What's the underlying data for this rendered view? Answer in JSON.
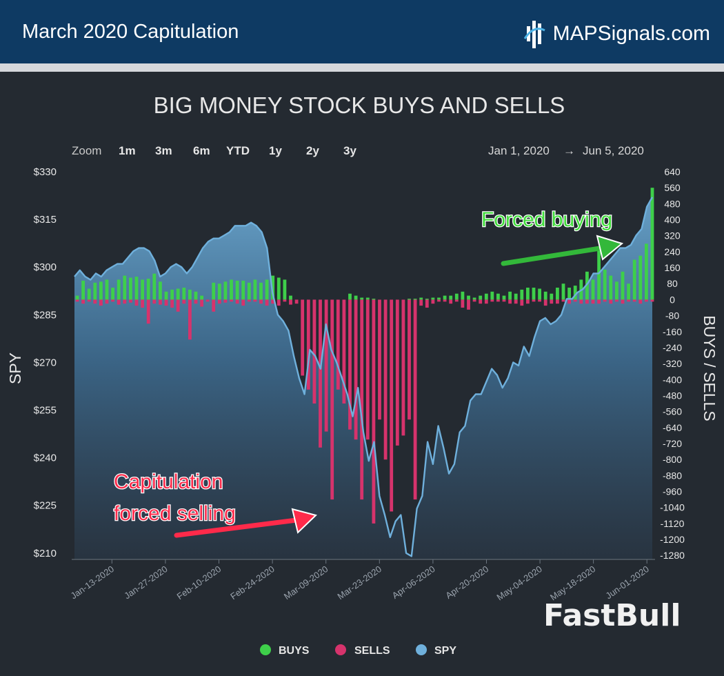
{
  "header": {
    "title": "March 2020 Capitulation",
    "brand": "MAPSignals.com"
  },
  "zoom": {
    "label": "Zoom",
    "options": [
      "1m",
      "3m",
      "6m",
      "YTD",
      "1y",
      "2y",
      "3y"
    ]
  },
  "date_range": {
    "from": "Jan 1, 2020",
    "arrow": "→",
    "to": "Jun 5, 2020"
  },
  "annotations": {
    "forced_buying": "Forced buying",
    "capitulation_line1": "Capitulation",
    "capitulation_line2": "forced selling"
  },
  "watermark": "FastBull",
  "colors": {
    "buys": "#3ecf4a",
    "sells": "#d6336c",
    "spy": "#6fb0dc",
    "header_bg": "#0e3a63",
    "panel_bg": "#242a31"
  },
  "chart_data": {
    "type": "bar",
    "title": "BIG MONEY STOCK BUYS AND SELLS",
    "ylabel_left": "SPY",
    "ylabel_right": "BUYS / SELLS",
    "ylim_left": [
      208,
      330
    ],
    "ylim_right": [
      -1300,
      640
    ],
    "yticks_left": [
      "$330",
      "$315",
      "$300",
      "$285",
      "$270",
      "$255",
      "$240",
      "$225",
      "$210"
    ],
    "yticks_left_values": [
      330,
      315,
      300,
      285,
      270,
      255,
      240,
      225,
      210
    ],
    "yticks_right": [
      "640",
      "560",
      "480",
      "400",
      "320",
      "240",
      "160",
      "80",
      "0",
      "-80",
      "-160",
      "-240",
      "-320",
      "-400",
      "-480",
      "-560",
      "-640",
      "-720",
      "-800",
      "-880",
      "-960",
      "-1040",
      "-1120",
      "-1200",
      "-1280"
    ],
    "yticks_right_values": [
      640,
      560,
      480,
      400,
      320,
      240,
      160,
      80,
      0,
      -80,
      -160,
      -240,
      -320,
      -400,
      -480,
      -560,
      -640,
      -720,
      -800,
      -880,
      -960,
      -1040,
      -1120,
      -1200,
      -1280
    ],
    "xticks": [
      "Jan-13-2020",
      "Jan-27-2020",
      "Feb-10-2020",
      "Feb-24-2020",
      "Mar-09-2020",
      "Mar-23-2020",
      "Apr-06-2020",
      "Apr-20-2020",
      "May-04-2020",
      "May-18-2020",
      "Jun-01-2020"
    ],
    "xtick_day_index": [
      7,
      17,
      27,
      37,
      47,
      57,
      67,
      77,
      87,
      97,
      107
    ],
    "legend": [
      "BUYS",
      "SELLS",
      "SPY"
    ],
    "legend_position": "bottom-center",
    "grid": false,
    "series": [
      {
        "name": "SPY",
        "type": "area",
        "values": [
          297,
          299,
          297,
          296,
          298,
          297,
          299,
          300,
          301,
          301,
          303,
          305,
          306,
          306,
          305,
          302,
          297,
          298,
          300,
          301,
          300,
          298,
          300,
          303,
          306,
          308,
          309,
          309,
          310,
          311,
          313,
          313,
          313,
          314,
          313,
          311,
          306,
          292,
          285,
          283,
          280,
          272,
          265,
          260,
          274,
          272,
          268,
          282,
          274,
          270,
          265,
          260,
          253,
          262,
          248,
          239,
          245,
          228,
          222,
          215,
          220,
          222,
          210,
          209,
          224,
          228,
          245,
          238,
          250,
          243,
          235,
          238,
          248,
          250,
          258,
          260,
          260,
          264,
          268,
          266,
          262,
          265,
          270,
          269,
          275,
          272,
          278,
          283,
          284,
          282,
          283,
          285,
          290,
          290,
          292,
          293,
          295,
          298,
          298,
          300,
          302,
          304,
          306,
          306,
          307,
          310,
          312,
          319,
          322
        ]
      },
      {
        "name": "BUYS",
        "type": "bar",
        "values": [
          20,
          95,
          55,
          85,
          90,
          100,
          60,
          100,
          120,
          110,
          115,
          100,
          105,
          130,
          90,
          40,
          50,
          55,
          60,
          50,
          40,
          20,
          0,
          85,
          80,
          90,
          100,
          95,
          95,
          85,
          100,
          85,
          100,
          120,
          110,
          100,
          20,
          0,
          0,
          0,
          0,
          0,
          0,
          0,
          0,
          0,
          30,
          20,
          10,
          10,
          5,
          0,
          0,
          0,
          0,
          0,
          5,
          5,
          10,
          5,
          10,
          10,
          20,
          20,
          30,
          40,
          20,
          10,
          20,
          30,
          40,
          30,
          20,
          40,
          30,
          50,
          60,
          60,
          55,
          40,
          30,
          60,
          80,
          60,
          70,
          100,
          140,
          100,
          250,
          150,
          120,
          90,
          140,
          80,
          200,
          220,
          280,
          560
        ]
      },
      {
        "name": "SELLS",
        "type": "bar",
        "values": [
          -10,
          -20,
          -10,
          -20,
          -30,
          -20,
          -10,
          -25,
          -20,
          -15,
          -30,
          -40,
          -120,
          -20,
          -25,
          -30,
          -40,
          -60,
          -20,
          -200,
          -20,
          -35,
          -10,
          -60,
          -20,
          -15,
          -10,
          -20,
          -30,
          -10,
          -10,
          -20,
          -30,
          -20,
          -30,
          -10,
          -25,
          -20,
          -380,
          -450,
          -520,
          -740,
          -660,
          -1000,
          -450,
          -520,
          -650,
          -700,
          -1000,
          -700,
          -1120,
          -600,
          -800,
          -1060,
          -730,
          -680,
          -600,
          -1000,
          -30,
          -40,
          -20,
          -10,
          -10,
          -20,
          -10,
          -40,
          -50,
          -10,
          -20,
          -20,
          -10,
          -10,
          -10,
          -20,
          -20,
          -30,
          -20,
          -10,
          -10,
          -30,
          -20,
          -20,
          -10,
          -20,
          -10,
          -20,
          -20,
          -20,
          -20,
          -10,
          -20,
          -10,
          -20,
          -10,
          -10,
          -20,
          -10,
          -10
        ]
      }
    ]
  }
}
